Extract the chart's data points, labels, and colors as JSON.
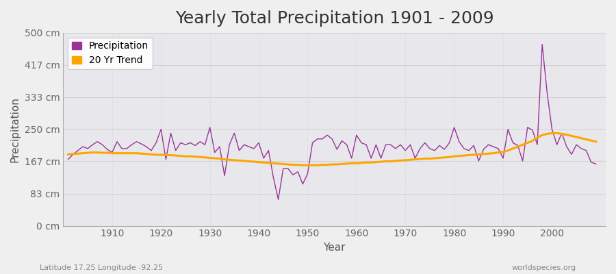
{
  "title": "Yearly Total Precipitation 1901 - 2009",
  "xlabel": "Year",
  "ylabel": "Precipitation",
  "subtitle_left": "Latitude 17.25 Longitude -92.25",
  "subtitle_right": "worldspecies.org",
  "years": [
    1901,
    1902,
    1903,
    1904,
    1905,
    1906,
    1907,
    1908,
    1909,
    1910,
    1911,
    1912,
    1913,
    1914,
    1915,
    1916,
    1917,
    1918,
    1919,
    1920,
    1921,
    1922,
    1923,
    1924,
    1925,
    1926,
    1927,
    1928,
    1929,
    1930,
    1931,
    1932,
    1933,
    1934,
    1935,
    1936,
    1937,
    1938,
    1939,
    1940,
    1941,
    1942,
    1943,
    1944,
    1945,
    1946,
    1947,
    1948,
    1949,
    1950,
    1951,
    1952,
    1953,
    1954,
    1955,
    1956,
    1957,
    1958,
    1959,
    1960,
    1961,
    1962,
    1963,
    1964,
    1965,
    1966,
    1967,
    1968,
    1969,
    1970,
    1971,
    1972,
    1973,
    1974,
    1975,
    1976,
    1977,
    1978,
    1979,
    1980,
    1981,
    1982,
    1983,
    1984,
    1985,
    1986,
    1987,
    1988,
    1989,
    1990,
    1991,
    1992,
    1993,
    1994,
    1995,
    1996,
    1997,
    1998,
    1999,
    2000,
    2001,
    2002,
    2003,
    2004,
    2005,
    2006,
    2007,
    2008,
    2009
  ],
  "precipitation": [
    172,
    185,
    195,
    205,
    200,
    210,
    218,
    210,
    198,
    190,
    218,
    200,
    200,
    210,
    218,
    212,
    205,
    195,
    215,
    250,
    172,
    240,
    195,
    215,
    210,
    215,
    208,
    218,
    210,
    255,
    190,
    205,
    130,
    210,
    240,
    195,
    210,
    205,
    200,
    215,
    175,
    195,
    125,
    68,
    148,
    148,
    132,
    140,
    108,
    135,
    215,
    225,
    225,
    235,
    225,
    198,
    220,
    210,
    175,
    235,
    215,
    210,
    175,
    210,
    175,
    210,
    210,
    200,
    210,
    195,
    210,
    175,
    200,
    215,
    200,
    195,
    208,
    198,
    215,
    255,
    218,
    200,
    195,
    208,
    168,
    198,
    210,
    205,
    200,
    175,
    250,
    215,
    208,
    168,
    255,
    248,
    210,
    470,
    345,
    250,
    210,
    240,
    205,
    185,
    210,
    200,
    195,
    165,
    160
  ],
  "trend": [
    185,
    186,
    187,
    188,
    189,
    190,
    190,
    189,
    189,
    188,
    188,
    188,
    188,
    188,
    188,
    187,
    186,
    185,
    184,
    184,
    183,
    183,
    182,
    181,
    180,
    180,
    179,
    178,
    177,
    176,
    175,
    174,
    172,
    171,
    170,
    169,
    168,
    167,
    166,
    165,
    164,
    163,
    162,
    161,
    160,
    159,
    158,
    158,
    157,
    157,
    157,
    157,
    158,
    158,
    159,
    159,
    160,
    161,
    162,
    162,
    163,
    164,
    164,
    165,
    166,
    167,
    167,
    168,
    169,
    170,
    171,
    172,
    173,
    174,
    174,
    175,
    176,
    177,
    178,
    180,
    181,
    182,
    183,
    184,
    185,
    186,
    187,
    188,
    190,
    191,
    195,
    200,
    205,
    210,
    215,
    220,
    228,
    235,
    238,
    240,
    240,
    238,
    236,
    233,
    230,
    227,
    224,
    221,
    218
  ],
  "precip_color": "#993399",
  "trend_color": "#FFA500",
  "bg_color": "#EFEFEF",
  "plot_bg_color": "#E8E8EC",
  "ylim": [
    0,
    500
  ],
  "yticks": [
    0,
    83,
    167,
    250,
    333,
    417,
    500
  ],
  "ytick_labels": [
    "0 cm",
    "83 cm",
    "167 cm",
    "250 cm",
    "333 cm",
    "417 cm",
    "500 cm"
  ],
  "xticks": [
    1910,
    1920,
    1930,
    1940,
    1950,
    1960,
    1970,
    1980,
    1990,
    2000
  ],
  "title_fontsize": 18,
  "axis_label_fontsize": 11,
  "tick_fontsize": 10,
  "legend_fontsize": 10
}
